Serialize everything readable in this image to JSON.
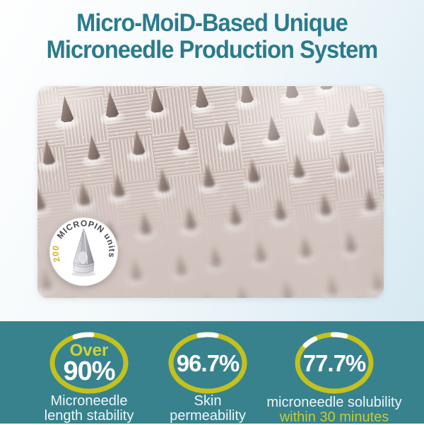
{
  "title": {
    "line1": "Micro-MoiD-Based Unique",
    "line2": "Microneedle Production System"
  },
  "badge": {
    "number": "200",
    "label": "MICROPIN units"
  },
  "stats": [
    {
      "prefix": "Over",
      "value": "90%",
      "label1": "Microneedle",
      "label2": "length stability"
    },
    {
      "value": "96.7%",
      "label1": "Skin",
      "label2": "permeability"
    },
    {
      "value": "77.7%",
      "label1": "microneedle solubility",
      "label2": "within 30 minutes"
    }
  ],
  "colors": {
    "title_teal": "#2a7b8c",
    "band_teal": "#38828e",
    "ring_yellow": "#c3c11d",
    "accent_yellow": "#cdd334",
    "badge_gold": "#d8ae1a"
  }
}
